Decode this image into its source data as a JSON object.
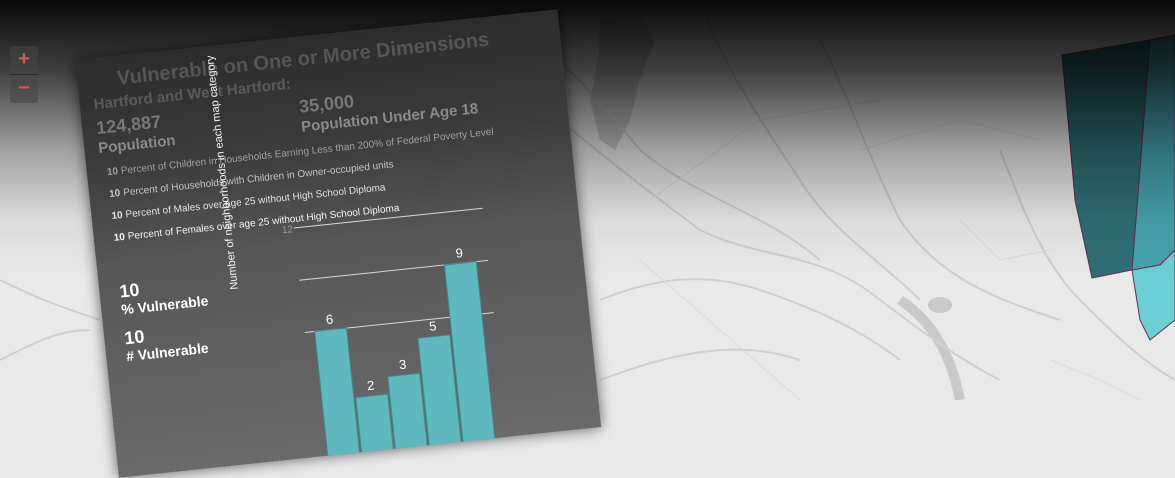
{
  "map": {
    "zoom_in_label": "+",
    "zoom_out_label": "−",
    "accent": "#5fb8c0",
    "region_colors": [
      "#2e6f75",
      "#45a3ad",
      "#6ccfd6"
    ]
  },
  "panel": {
    "title": "Vulnerable on One or More Dimensions",
    "place": "Hartford and West Hartford:",
    "population_value": "124,887",
    "population_label": "Population",
    "under18_value": "35,000",
    "under18_label": "Population Under Age 18",
    "indicators": [
      {
        "value": "10",
        "text": "Percent of Children in Households Earning Less than 200% of Federal Poverty Level"
      },
      {
        "value": "10",
        "text": "Percent of Households with Children in Owner-occupied units"
      },
      {
        "value": "10",
        "text": "Percent of Males over age 25 without High School Diploma"
      },
      {
        "value": "10",
        "text": "Percent of Females over age 25 without High School Diploma"
      }
    ],
    "pct_vulnerable_value": "10",
    "pct_vulnerable_label": "% Vulnerable",
    "num_vulnerable_value": "10",
    "num_vulnerable_label": "# Vulnerable"
  },
  "chart_data": {
    "type": "bar",
    "ylabel": "Number of neighborhoods in each map category",
    "ylim": [
      0,
      12
    ],
    "values": [
      6,
      2,
      3,
      5,
      9
    ],
    "bar_color": "#5fb8c0",
    "tick_labels": [
      "12"
    ],
    "grid": true
  }
}
